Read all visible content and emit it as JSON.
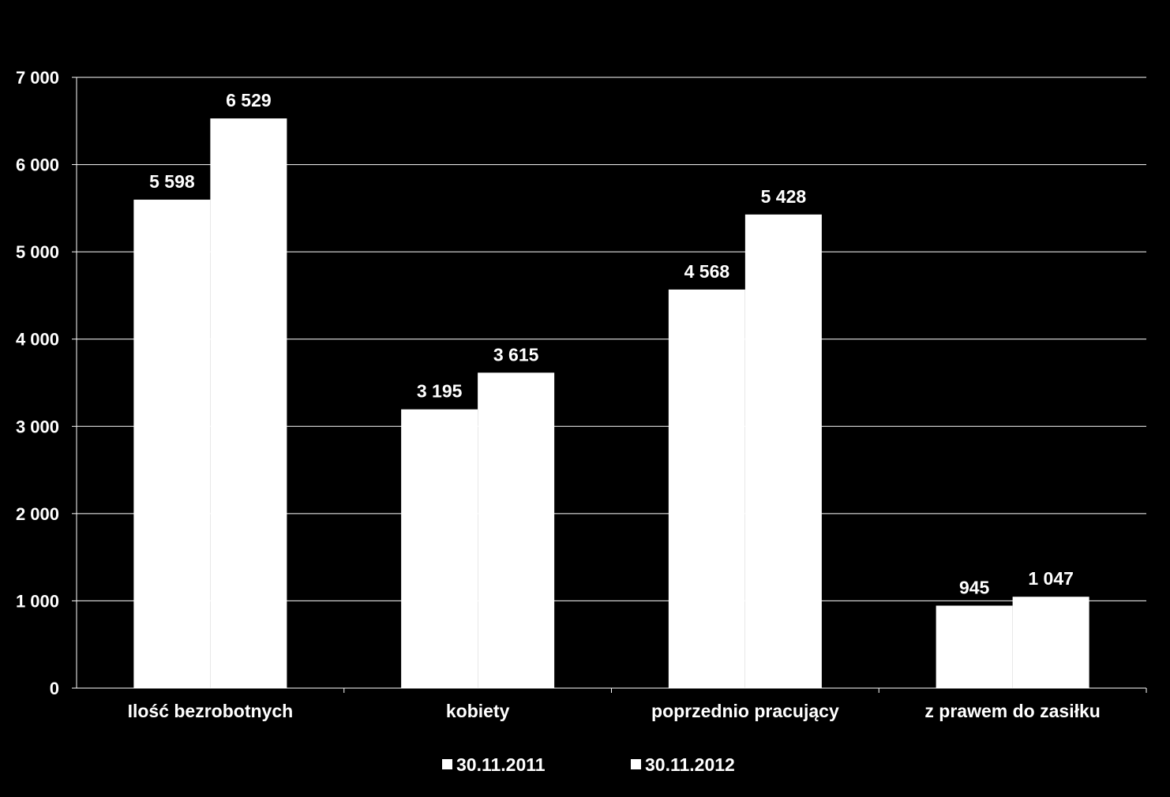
{
  "chart_data": {
    "type": "bar",
    "title": "",
    "xlabel": "",
    "ylabel": "",
    "categories": [
      "Ilość bezrobotnych",
      "kobiety",
      "poprzednio pracujący",
      "z prawem do zasiłku"
    ],
    "series": [
      {
        "name": "30.11.2011",
        "values": [
          5598,
          3195,
          4568,
          945
        ],
        "labels": [
          "5 598",
          "3 195",
          "4 568",
          "945"
        ],
        "color": "#ffffff"
      },
      {
        "name": "30.11.2012",
        "values": [
          6529,
          3615,
          5428,
          1047
        ],
        "labels": [
          "6 529",
          "3 615",
          "5 428",
          "1 047"
        ],
        "color": "#ffffff"
      }
    ],
    "ylim": [
      0,
      7000
    ],
    "yticks": [
      0,
      1000,
      2000,
      3000,
      4000,
      5000,
      6000,
      7000
    ],
    "ytick_labels": [
      "0",
      "1 000",
      "2 000",
      "3 000",
      "4 000",
      "5 000",
      "6 000",
      "7 000"
    ],
    "grid": true,
    "legend_position": "bottom",
    "background": "#000000",
    "text_color": "#ffffff",
    "grid_color": "#ffffff"
  }
}
